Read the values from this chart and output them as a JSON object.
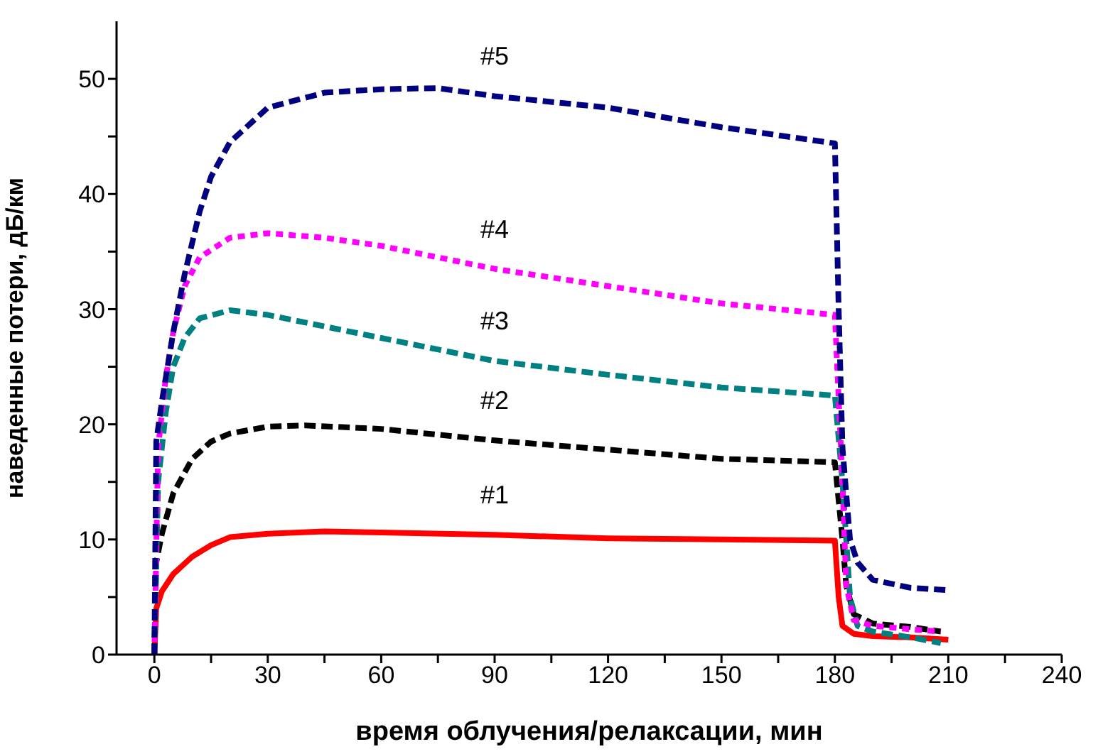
{
  "chart_data": {
    "type": "line",
    "xlabel": "время облучения/релаксации, мин",
    "ylabel": "наведенные потери, дБ/км",
    "xlim": [
      -10,
      240
    ],
    "xticks": [
      0,
      {
        "value": 15,
        "label": null
      },
      30,
      {
        "value": 45,
        "label": null
      },
      60,
      {
        "value": 75,
        "label": null
      },
      90,
      {
        "value": 105,
        "label": null
      },
      120,
      {
        "value": 135,
        "label": null
      },
      150,
      {
        "value": 165,
        "label": null
      },
      180,
      {
        "value": 195,
        "label": null
      },
      210,
      {
        "value": 225,
        "label": null
      },
      240
    ],
    "ylim": [
      0,
      55
    ],
    "yticks": [
      0,
      {
        "value": 5,
        "label": null
      },
      10,
      {
        "value": 15,
        "label": null
      },
      20,
      {
        "value": 25,
        "label": null
      },
      30,
      {
        "value": 35,
        "label": null
      },
      40,
      {
        "value": 45,
        "label": null
      },
      50
    ],
    "grid": false,
    "legend": false,
    "marker": "none",
    "series": [
      {
        "name": "#1",
        "color": "#ff0000",
        "line_style": "solid",
        "x": [
          0,
          0.5,
          2,
          5,
          10,
          15,
          20,
          30,
          45,
          60,
          90,
          120,
          150,
          180,
          181,
          182,
          185,
          190,
          200,
          210
        ],
        "values": [
          0,
          4,
          5.5,
          7,
          8.5,
          9.5,
          10.2,
          10.5,
          10.7,
          10.6,
          10.4,
          10.1,
          10,
          9.9,
          5,
          2.5,
          1.8,
          1.6,
          1.5,
          1.3
        ]
      },
      {
        "name": "#2",
        "color": "#000000",
        "line_style": "dashed",
        "x": [
          0,
          0.5,
          2,
          5,
          10,
          15,
          20,
          30,
          40,
          60,
          90,
          120,
          150,
          180,
          182,
          183,
          185,
          190,
          200,
          208
        ],
        "values": [
          0,
          8,
          10.5,
          14,
          17,
          18.5,
          19.2,
          19.8,
          19.9,
          19.6,
          18.6,
          17.8,
          17,
          16.7,
          10,
          6,
          3.5,
          2.7,
          2.4,
          2
        ]
      },
      {
        "name": "#3",
        "color": "#008080",
        "line_style": "dashed",
        "x": [
          0,
          1,
          3,
          5,
          8,
          12,
          20,
          30,
          60,
          90,
          120,
          150,
          180,
          182,
          184,
          186,
          190,
          200,
          208
        ],
        "values": [
          0,
          15,
          21,
          25,
          27.5,
          29.2,
          29.9,
          29.5,
          27.5,
          25.5,
          24.3,
          23.2,
          22.5,
          15,
          5,
          2.5,
          2,
          1.5,
          1
        ]
      },
      {
        "name": "#4",
        "color": "#ff00ff",
        "line_style": "dotted",
        "x": [
          0,
          1,
          3,
          5,
          8,
          12,
          20,
          30,
          45,
          60,
          90,
          120,
          150,
          180,
          182,
          183,
          185,
          190,
          200,
          208
        ],
        "values": [
          0,
          18,
          24,
          28,
          32,
          34.5,
          36.2,
          36.6,
          36.2,
          35.5,
          33.5,
          32,
          30.5,
          29.5,
          15,
          6,
          3,
          2.5,
          2.2,
          2
        ]
      },
      {
        "name": "#5",
        "color": "#000080",
        "line_style": "dashed",
        "x": [
          0,
          0.5,
          2,
          5,
          8,
          12,
          15,
          20,
          30,
          45,
          60,
          75,
          90,
          120,
          150,
          180,
          181,
          182,
          184,
          186,
          190,
          200,
          210
        ],
        "values": [
          0,
          18.5,
          22,
          28,
          33,
          38.5,
          41.5,
          44.5,
          47.5,
          48.8,
          49.1,
          49.2,
          48.5,
          47.5,
          45.8,
          44.4,
          30,
          18,
          10,
          8,
          6.5,
          5.8,
          5.6
        ]
      }
    ]
  }
}
